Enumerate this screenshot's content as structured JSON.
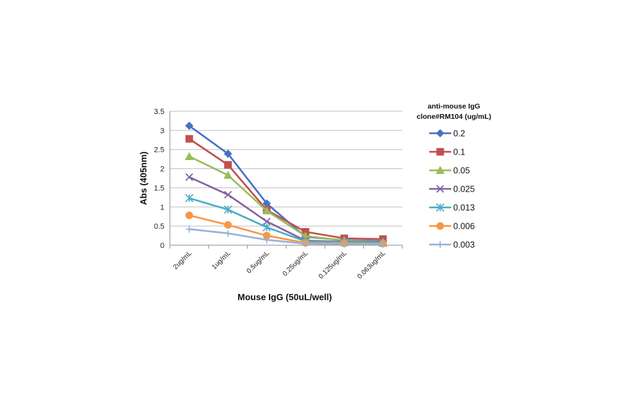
{
  "chart_data": {
    "type": "line",
    "categories": [
      "2ug/mL",
      "1ug/mL",
      "0.5ug/mL",
      "0.25ug/mL",
      "0.125ug/mL",
      "0.063ug/mL"
    ],
    "xlabel": "Mouse IgG (50uL/well)",
    "ylabel": "Abs (405nm)",
    "ylim": [
      0,
      3.5
    ],
    "yticks": [
      "0",
      "0.5",
      "1",
      "1.5",
      "2",
      "2.5",
      "3",
      "3.5"
    ],
    "grid": true,
    "legend_title_line1": "anti-mouse IgG",
    "legend_title_line2": "clone#RM104 (ug/mL)",
    "legend_position": "right",
    "series": [
      {
        "name": "0.2",
        "color": "#4472C4",
        "marker": "diamond",
        "values": [
          3.12,
          2.39,
          1.09,
          0.22,
          0.13,
          0.11
        ]
      },
      {
        "name": "0.1",
        "color": "#C0504D",
        "marker": "square",
        "values": [
          2.78,
          2.1,
          0.92,
          0.35,
          0.18,
          0.16
        ]
      },
      {
        "name": "0.05",
        "color": "#9BBB59",
        "marker": "triangle",
        "values": [
          2.32,
          1.83,
          0.9,
          0.24,
          0.12,
          0.08
        ]
      },
      {
        "name": "0.025",
        "color": "#8064A2",
        "marker": "x",
        "values": [
          1.78,
          1.32,
          0.62,
          0.12,
          0.09,
          0.07
        ]
      },
      {
        "name": "0.013",
        "color": "#4BACC6",
        "marker": "star",
        "values": [
          1.23,
          0.93,
          0.47,
          0.1,
          0.08,
          0.06
        ]
      },
      {
        "name": "0.006",
        "color": "#F79646",
        "marker": "circle",
        "values": [
          0.78,
          0.53,
          0.25,
          0.06,
          0.05,
          0.04
        ]
      },
      {
        "name": "0.003",
        "color": "#95B3D7",
        "marker": "plus",
        "values": [
          0.42,
          0.31,
          0.14,
          0.04,
          0.03,
          0.03
        ]
      }
    ]
  }
}
